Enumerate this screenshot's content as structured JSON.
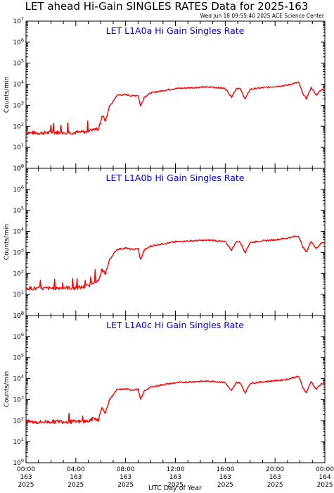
{
  "header": {
    "title": "LET ahead Hi-Gain SINGLES RATES Data for 2025-163",
    "timestamp": "Wed Jun 18 09:55:40 2025 ACE Science Center"
  },
  "colors": {
    "series": "#ff0000",
    "panel_title": "#0000ee",
    "axes": "#000000"
  },
  "y_axis": {
    "label": "Counts/min",
    "tick_mantissa": "10",
    "tick_exponents": [
      "0",
      "1",
      "2",
      "3",
      "4",
      "5",
      "6",
      "7"
    ]
  },
  "x_axis": {
    "label": "UTC Day of Year",
    "ticks": [
      {
        "time": "00:00",
        "doy": "163",
        "year": "2025"
      },
      {
        "time": "04:00",
        "doy": "163",
        "year": "2025"
      },
      {
        "time": "08:00",
        "doy": "163",
        "year": "2025"
      },
      {
        "time": "12:00",
        "doy": "163",
        "year": "2025"
      },
      {
        "time": "16:00",
        "doy": "163",
        "year": "2025"
      },
      {
        "time": "20:00",
        "doy": "163",
        "year": "2025"
      },
      {
        "time": "00:00",
        "doy": "164",
        "year": "2025"
      }
    ]
  },
  "chart_data": [
    {
      "type": "line",
      "title": "LET L1A0a Hi Gain Singles Rate",
      "xlabel": "",
      "ylabel": "Counts/min",
      "yscale": "log",
      "xlim": [
        0,
        24
      ],
      "ylim": [
        1,
        10000000
      ],
      "x_unit": "hours UTC (DOY 163)",
      "x": [
        0,
        1,
        2,
        3,
        4,
        5,
        5.5,
        5.8,
        6.1,
        6.4,
        6.7,
        7.0,
        7.3,
        8.0,
        8.5,
        9.0,
        9.2,
        9.5,
        10,
        11,
        12,
        13,
        14,
        15,
        15.5,
        16,
        16.5,
        16.9,
        17.2,
        17.6,
        18,
        19,
        20,
        21,
        21.5,
        21.9,
        22.2,
        22.5,
        22.9,
        23.3,
        23.7,
        24
      ],
      "y": [
        50,
        48,
        50,
        52,
        50,
        55,
        80,
        75,
        300,
        180,
        900,
        1500,
        3000,
        3200,
        2800,
        3000,
        900,
        2500,
        3800,
        5000,
        6200,
        6700,
        7200,
        7300,
        6800,
        6200,
        2500,
        6500,
        6000,
        2000,
        5800,
        6800,
        7800,
        9000,
        11000,
        12000,
        4000,
        2000,
        7000,
        3000,
        5500,
        6000
      ]
    },
    {
      "type": "line",
      "title": "LET L1A0b Hi Gain Singles Rate",
      "xlabel": "",
      "ylabel": "Counts/min",
      "yscale": "log",
      "xlim": [
        0,
        24
      ],
      "ylim": [
        1,
        10000000
      ],
      "x_unit": "hours UTC (DOY 163)",
      "x": [
        0,
        1,
        2,
        3,
        4,
        5,
        5.5,
        5.8,
        6.1,
        6.4,
        6.7,
        7.0,
        7.3,
        8.0,
        8.5,
        9.0,
        9.2,
        9.5,
        10,
        11,
        12,
        13,
        14,
        15,
        15.5,
        16,
        16.5,
        16.9,
        17.2,
        17.6,
        18,
        19,
        20,
        21,
        21.5,
        21.9,
        22.2,
        22.5,
        22.9,
        23.3,
        23.7,
        24
      ],
      "y": [
        20,
        19,
        20,
        21,
        20,
        25,
        45,
        40,
        150,
        90,
        450,
        800,
        1400,
        1600,
        1400,
        1500,
        450,
        1300,
        2000,
        2600,
        3200,
        3500,
        3700,
        3800,
        3500,
        3200,
        1300,
        3300,
        3100,
        1000,
        3000,
        3500,
        4000,
        4800,
        5600,
        6000,
        2000,
        1000,
        3500,
        1500,
        2800,
        3000
      ]
    },
    {
      "type": "line",
      "title": "LET L1A0c Hi Gain Singles Rate",
      "xlabel": "",
      "ylabel": "Counts/min",
      "yscale": "log",
      "xlim": [
        0,
        24
      ],
      "ylim": [
        1,
        10000000
      ],
      "x_unit": "hours UTC (DOY 163)",
      "x": [
        0,
        1,
        2,
        3,
        4,
        5,
        5.5,
        5.8,
        6.1,
        6.4,
        6.7,
        7.0,
        7.3,
        8.0,
        8.5,
        9.0,
        9.2,
        9.5,
        10,
        11,
        12,
        13,
        14,
        15,
        15.5,
        16,
        16.5,
        16.9,
        17.2,
        17.6,
        18,
        19,
        20,
        21,
        21.5,
        21.9,
        22.2,
        22.5,
        22.9,
        23.3,
        23.7,
        24
      ],
      "y": [
        90,
        85,
        90,
        92,
        88,
        95,
        130,
        110,
        400,
        250,
        1000,
        1700,
        3000,
        3200,
        2900,
        3100,
        1000,
        2600,
        3900,
        5200,
        6300,
        6900,
        7400,
        7500,
        7000,
        6400,
        2600,
        6600,
        6200,
        2100,
        6000,
        7000,
        8000,
        9200,
        11500,
        12500,
        4200,
        2100,
        7200,
        3100,
        5600,
        6200
      ]
    }
  ]
}
